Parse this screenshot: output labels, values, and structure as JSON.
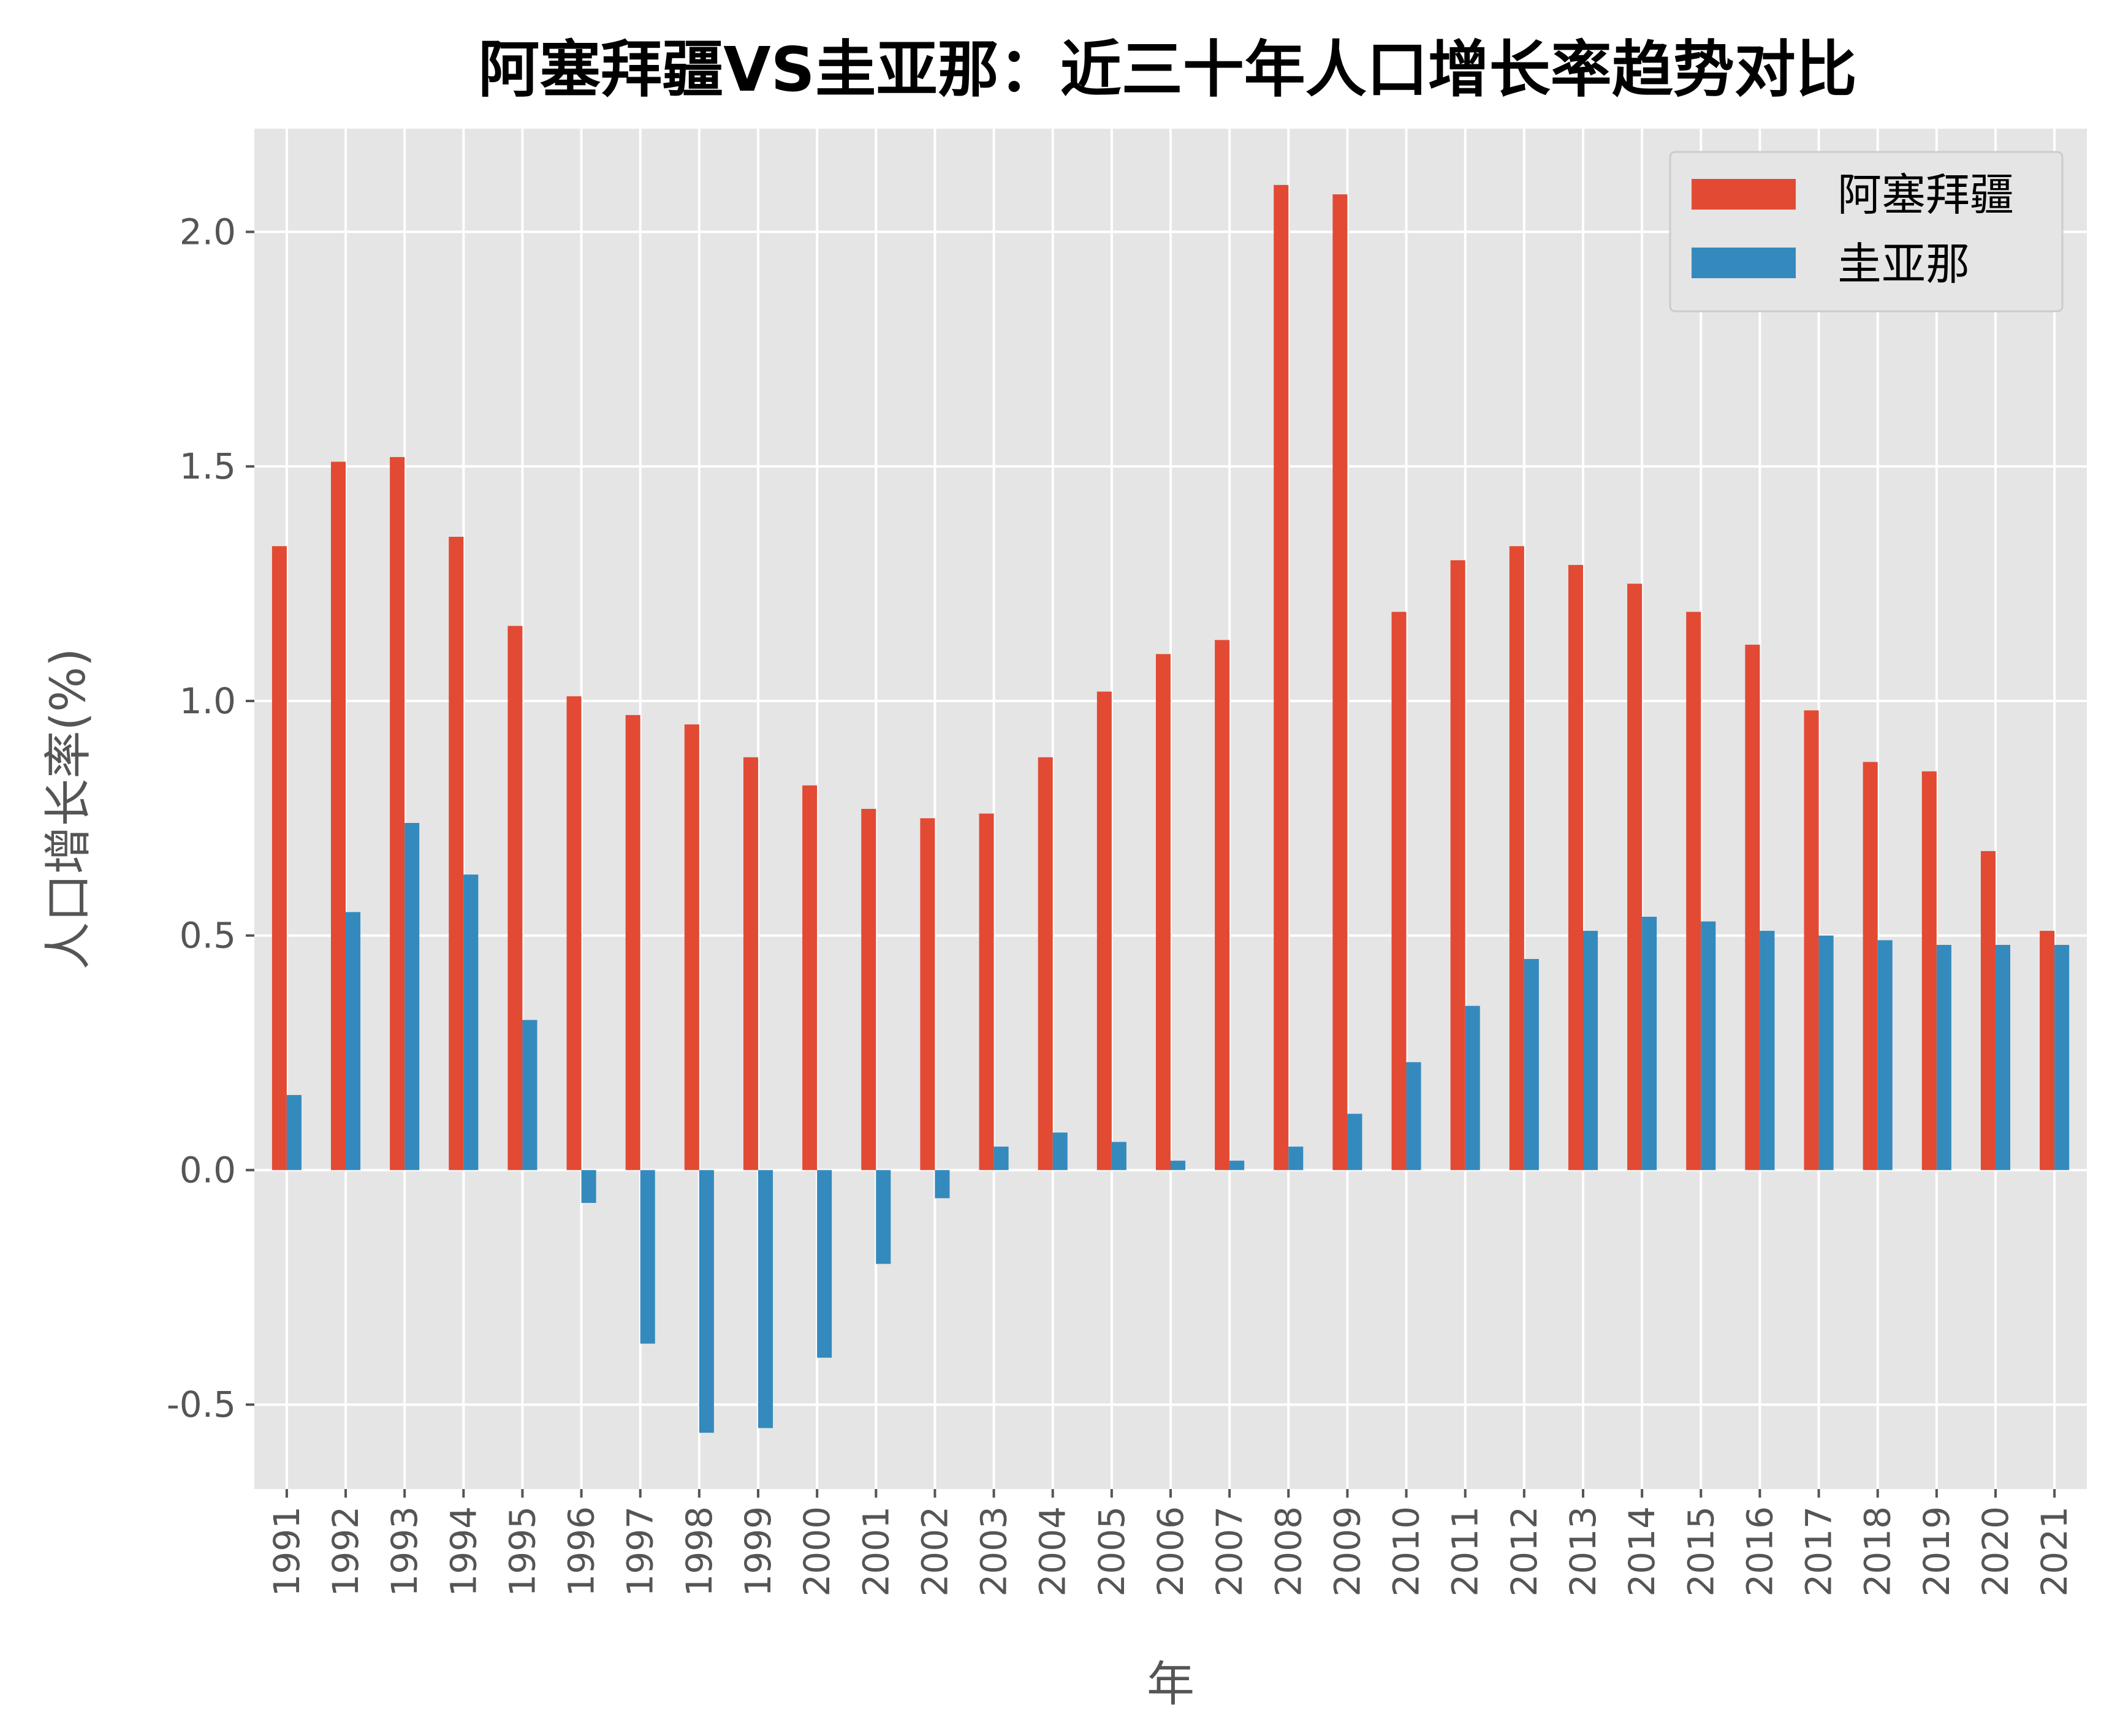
{
  "chart_data": {
    "type": "bar",
    "title": "阿塞拜疆VS圭亚那：近三十年人口增长率趋势对比",
    "xlabel": "年",
    "ylabel": "人口增长率(%)",
    "ylim": [
      -0.68,
      2.22
    ],
    "yticks": [
      "-0.5",
      "0.0",
      "0.5",
      "1.0",
      "1.5",
      "2.0"
    ],
    "ytick_values": [
      -0.5,
      0.0,
      0.5,
      1.0,
      1.5,
      2.0
    ],
    "grid": true,
    "legend_position": "top-right",
    "categories": [
      "1991",
      "1992",
      "1993",
      "1994",
      "1995",
      "1996",
      "1997",
      "1998",
      "1999",
      "2000",
      "2001",
      "2002",
      "2003",
      "2004",
      "2005",
      "2006",
      "2007",
      "2008",
      "2009",
      "2010",
      "2011",
      "2012",
      "2013",
      "2014",
      "2015",
      "2016",
      "2017",
      "2018",
      "2019",
      "2020",
      "2021"
    ],
    "series": [
      {
        "name": "阿塞拜疆",
        "color": "#E24A33",
        "values": [
          1.33,
          1.51,
          1.52,
          1.35,
          1.16,
          1.01,
          0.97,
          0.95,
          0.88,
          0.82,
          0.77,
          0.75,
          0.76,
          0.88,
          1.02,
          1.1,
          1.13,
          2.1,
          2.08,
          1.19,
          1.3,
          1.33,
          1.29,
          1.25,
          1.19,
          1.12,
          0.98,
          0.87,
          0.85,
          0.68,
          0.51
        ]
      },
      {
        "name": "圭亚那",
        "color": "#348ABD",
        "values": [
          0.16,
          0.55,
          0.74,
          0.63,
          0.32,
          -0.07,
          -0.37,
          -0.56,
          -0.55,
          -0.4,
          -0.2,
          -0.06,
          0.05,
          0.08,
          0.06,
          0.02,
          0.02,
          0.05,
          0.12,
          0.23,
          0.35,
          0.45,
          0.51,
          0.54,
          0.53,
          0.51,
          0.5,
          0.49,
          0.48,
          0.48,
          0.48
        ]
      }
    ]
  }
}
